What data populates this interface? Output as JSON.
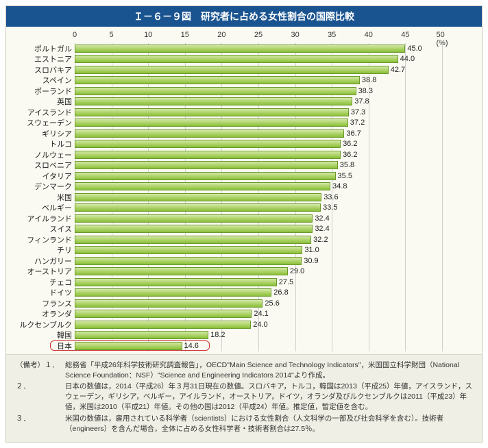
{
  "title": "Ｉ－６－９図　研究者に占める女性割合の国際比較",
  "chart": {
    "type": "bar",
    "orientation": "horizontal",
    "xlim": [
      0,
      50
    ],
    "xtick_step": 5,
    "xunit": "(%)",
    "bar_fill_top": "#d4e8a8",
    "bar_fill_bottom": "#8abf3a",
    "bar_border": "#6a9a2a",
    "grid_color": "#cfcfcf",
    "background_color": "#fafaf2",
    "label_fontsize": 11,
    "value_fontsize": 11,
    "highlight_color": "#d03030",
    "categories": [
      {
        "label": "ポルトガル",
        "value": 45.0
      },
      {
        "label": "エストニア",
        "value": 44.0
      },
      {
        "label": "スロバキア",
        "value": 42.7
      },
      {
        "label": "スペイン",
        "value": 38.8
      },
      {
        "label": "ポーランド",
        "value": 38.3
      },
      {
        "label": "英国",
        "value": 37.8
      },
      {
        "label": "アイスランド",
        "value": 37.3
      },
      {
        "label": "スウェーデン",
        "value": 37.2
      },
      {
        "label": "ギリシア",
        "value": 36.7
      },
      {
        "label": "トルコ",
        "value": 36.2
      },
      {
        "label": "ノルウェー",
        "value": 36.2
      },
      {
        "label": "スロベニア",
        "value": 35.8
      },
      {
        "label": "イタリア",
        "value": 35.5
      },
      {
        "label": "デンマーク",
        "value": 34.8
      },
      {
        "label": "米国",
        "value": 33.6
      },
      {
        "label": "ベルギー",
        "value": 33.5
      },
      {
        "label": "アイルランド",
        "value": 32.4
      },
      {
        "label": "スイス",
        "value": 32.4
      },
      {
        "label": "フィンランド",
        "value": 32.2
      },
      {
        "label": "チリ",
        "value": 31.0
      },
      {
        "label": "ハンガリー",
        "value": 30.9
      },
      {
        "label": "オーストリア",
        "value": 29.0
      },
      {
        "label": "チェコ",
        "value": 27.5
      },
      {
        "label": "ドイツ",
        "value": 26.8
      },
      {
        "label": "フランス",
        "value": 25.6
      },
      {
        "label": "オランダ",
        "value": 24.1
      },
      {
        "label": "ルクセンブルク",
        "value": 24.0
      },
      {
        "label": "韓国",
        "value": 18.2
      },
      {
        "label": "日本",
        "value": 14.6,
        "highlight": true
      }
    ]
  },
  "notes": {
    "head": "（備考）",
    "items": [
      {
        "num": "１．",
        "text": "総務省「平成26年科学技術研究調査報告」，OECD\"Main Science and Technology Indicators\"，米国国立科学財団（National Science Foundation：NSF）\"Science and Engineering Indicators 2014\"より作成。"
      },
      {
        "num": "２．",
        "text": "日本の数値は，2014（平成26）年３月31日現在の数値。スロバキア，トルコ，韓国は2013（平成25）年値，アイスランド，スウェーデン，ギリシア，ベルギー，アイルランド，オーストリア，ドイツ，オランダ及びルクセンブルクは2011（平成23）年値，米国は2010（平成21）年値。その他の国は2012（平成24）年値。推定値，暫定値を含む。"
      },
      {
        "num": "３．",
        "text": "米国の数値は，雇用されている科学者（scientists）における女性割合（人文科学の一部及び社会科学を含む）。技術者（engineers）を含んだ場合，全体に占める女性科学者・技術者割合は27.5％。"
      }
    ]
  }
}
